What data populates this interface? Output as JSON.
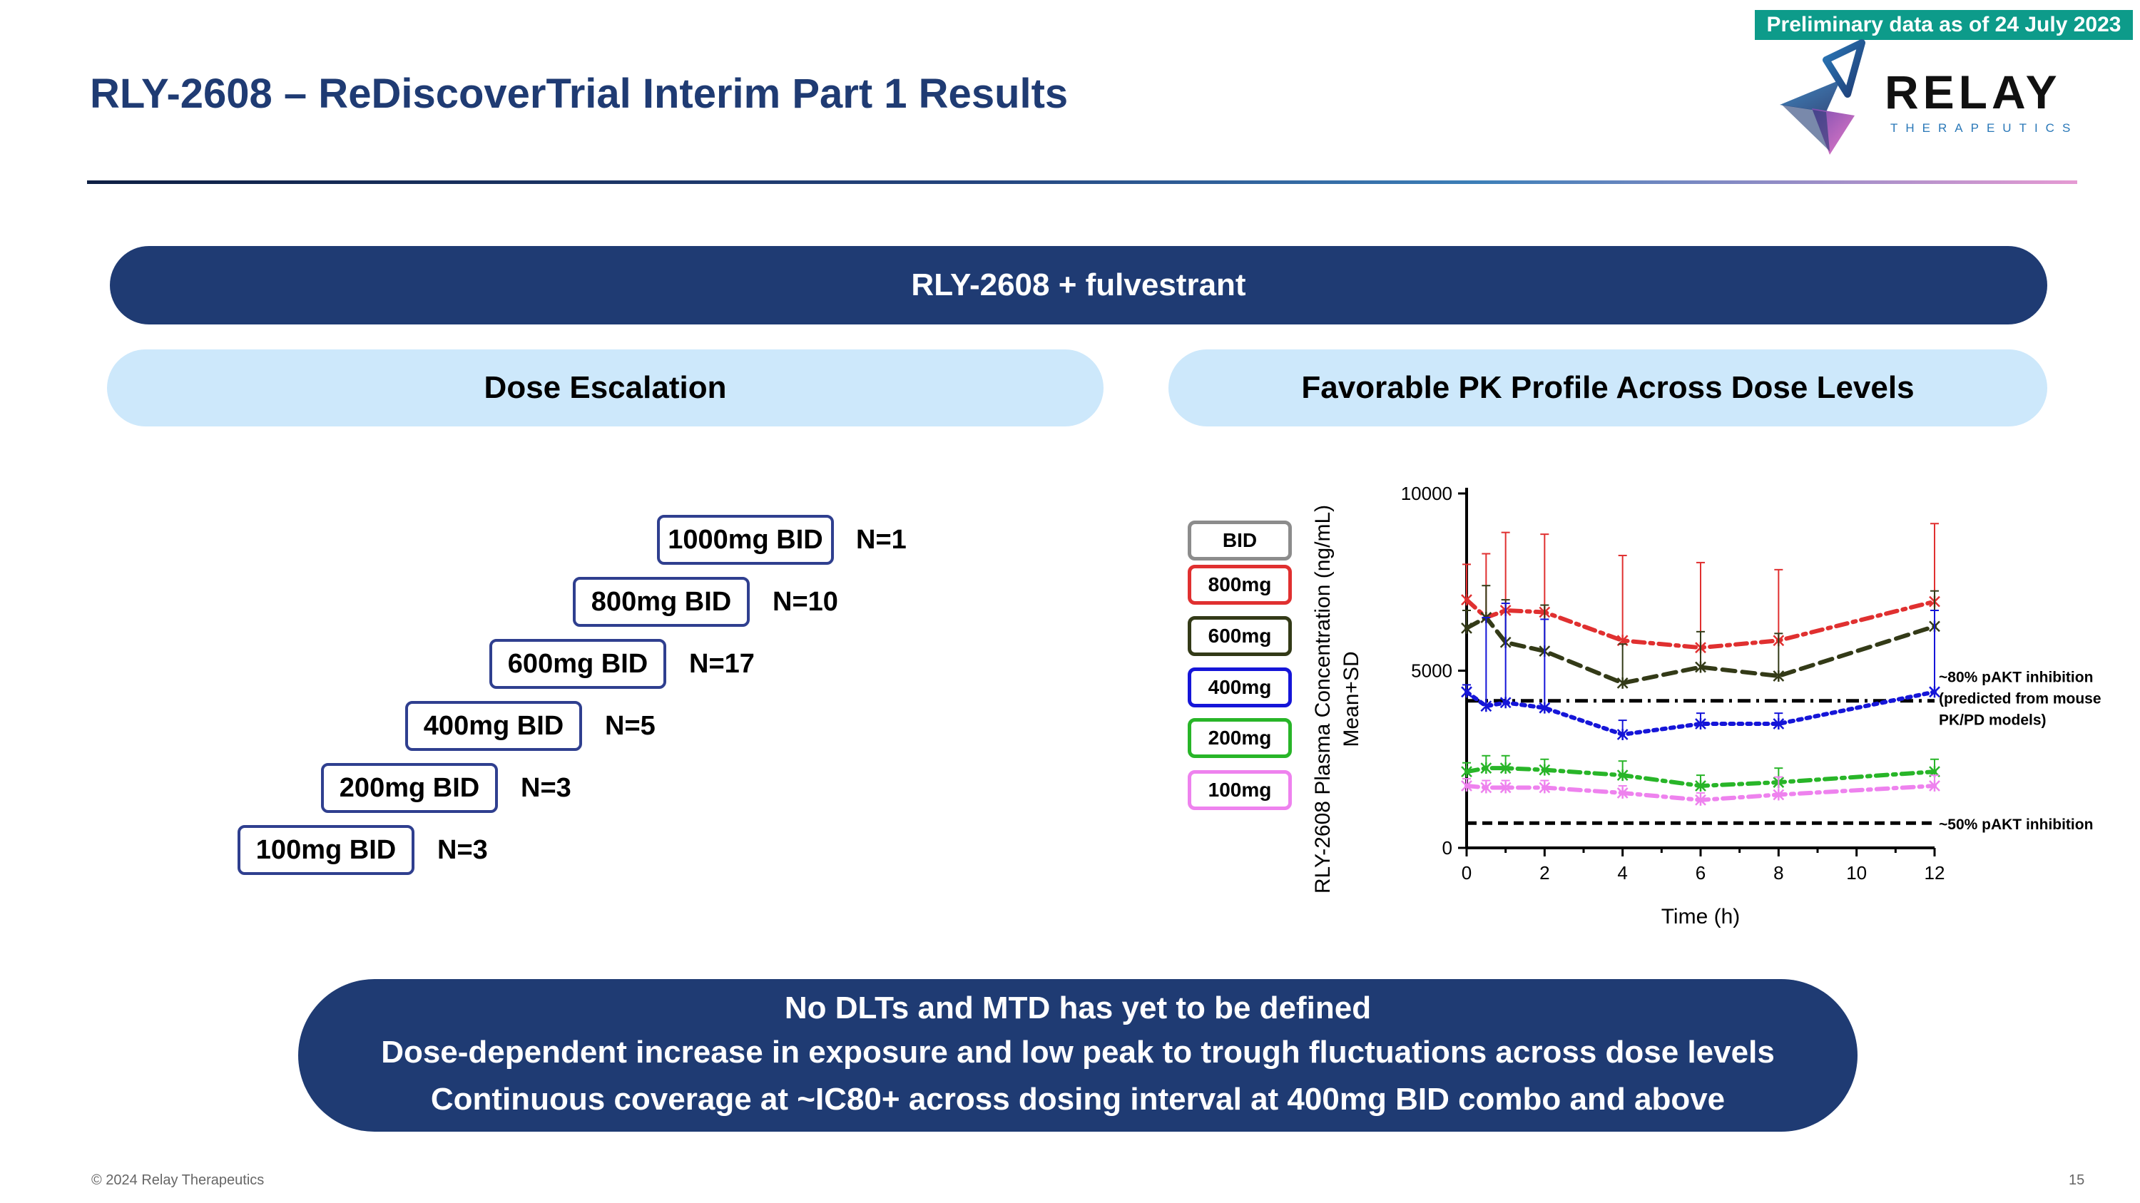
{
  "header": {
    "prelim_badge": "Preliminary data as of 24 July 2023",
    "title": "RLY-2608 – ReDiscoverTrial Interim Part 1 Results",
    "logo_name": "RELAY",
    "logo_sub": "THERAPEUTICS"
  },
  "banner": "RLY-2608 + fulvestrant",
  "left_panel": {
    "heading": "Dose Escalation",
    "doses": [
      {
        "label": "1000mg BID",
        "n": "N=1"
      },
      {
        "label": "800mg BID",
        "n": "N=10"
      },
      {
        "label": "600mg BID",
        "n": "N=17"
      },
      {
        "label": "400mg BID",
        "n": "N=5"
      },
      {
        "label": "200mg BID",
        "n": "N=3"
      },
      {
        "label": "100mg BID",
        "n": "N=3"
      }
    ]
  },
  "right_panel": {
    "heading": "Favorable PK Profile Across Dose Levels"
  },
  "legend": [
    {
      "label": "BID",
      "color": "#8c8c8c"
    },
    {
      "label": "800mg",
      "color": "#e03030"
    },
    {
      "label": "600mg",
      "color": "#333a17"
    },
    {
      "label": "400mg",
      "color": "#1515d8"
    },
    {
      "label": "200mg",
      "color": "#28b528"
    },
    {
      "label": "100mg",
      "color": "#ee82ee"
    }
  ],
  "chart_data": {
    "type": "line",
    "title": "",
    "xlabel": "Time (h)",
    "ylabel": "RLY-2608 Plasma Concentration (ng/mL)",
    "ylabel2": "Mean+SD",
    "xlim": [
      0,
      12
    ],
    "ylim": [
      0,
      10000
    ],
    "xticks": [
      0,
      2,
      4,
      6,
      8,
      10,
      12
    ],
    "yticks": [
      0,
      5000,
      10000
    ],
    "x": [
      0,
      0.5,
      1,
      2,
      4,
      6,
      8,
      12
    ],
    "series": [
      {
        "name": "800mg",
        "color": "#e03030",
        "values": [
          7000,
          6500,
          6700,
          6650,
          5850,
          5650,
          5850,
          6950
        ],
        "sd": [
          1000,
          1800,
          2200,
          2200,
          2400,
          2400,
          2000,
          2200
        ]
      },
      {
        "name": "600mg",
        "color": "#333a17",
        "values": [
          6200,
          6500,
          5800,
          5550,
          4650,
          5100,
          4850,
          6250
        ],
        "sd": [
          500,
          900,
          1200,
          1300,
          1100,
          1000,
          1200,
          1000
        ]
      },
      {
        "name": "400mg",
        "color": "#1515d8",
        "values": [
          4400,
          4000,
          4100,
          3950,
          3200,
          3500,
          3500,
          4400
        ],
        "sd": [
          200,
          2500,
          2800,
          2500,
          400,
          300,
          300,
          2300
        ]
      },
      {
        "name": "200mg",
        "color": "#28b528",
        "values": [
          2150,
          2250,
          2250,
          2200,
          2050,
          1750,
          1850,
          2150
        ],
        "sd": [
          250,
          350,
          350,
          300,
          400,
          300,
          400,
          350
        ]
      },
      {
        "name": "100mg",
        "color": "#ee82ee",
        "values": [
          1750,
          1700,
          1700,
          1700,
          1550,
          1350,
          1500,
          1750
        ],
        "sd": [
          200,
          200,
          200,
          200,
          200,
          200,
          500,
          300
        ]
      }
    ],
    "reference_lines": [
      {
        "value": 4150,
        "label": "~80% pAKT inhibition (predicted from mouse PK/PD models)",
        "label_lines": [
          "~80% pAKT inhibition",
          "(predicted from mouse",
          "PK/PD models)"
        ],
        "style": "dash-dot"
      },
      {
        "value": 700,
        "label": "~50% pAKT inhibition",
        "style": "dashed"
      }
    ]
  },
  "bottom_box": {
    "line1": "No DLTs and MTD has yet to be defined",
    "line2": "Dose-dependent increase in exposure and low peak to trough fluctuations across dose levels",
    "line3": "Continuous coverage at ~IC80+ across dosing interval at 400mg BID combo and above"
  },
  "footer": {
    "copyright": "© 2024 Relay Therapeutics",
    "page": "15"
  }
}
